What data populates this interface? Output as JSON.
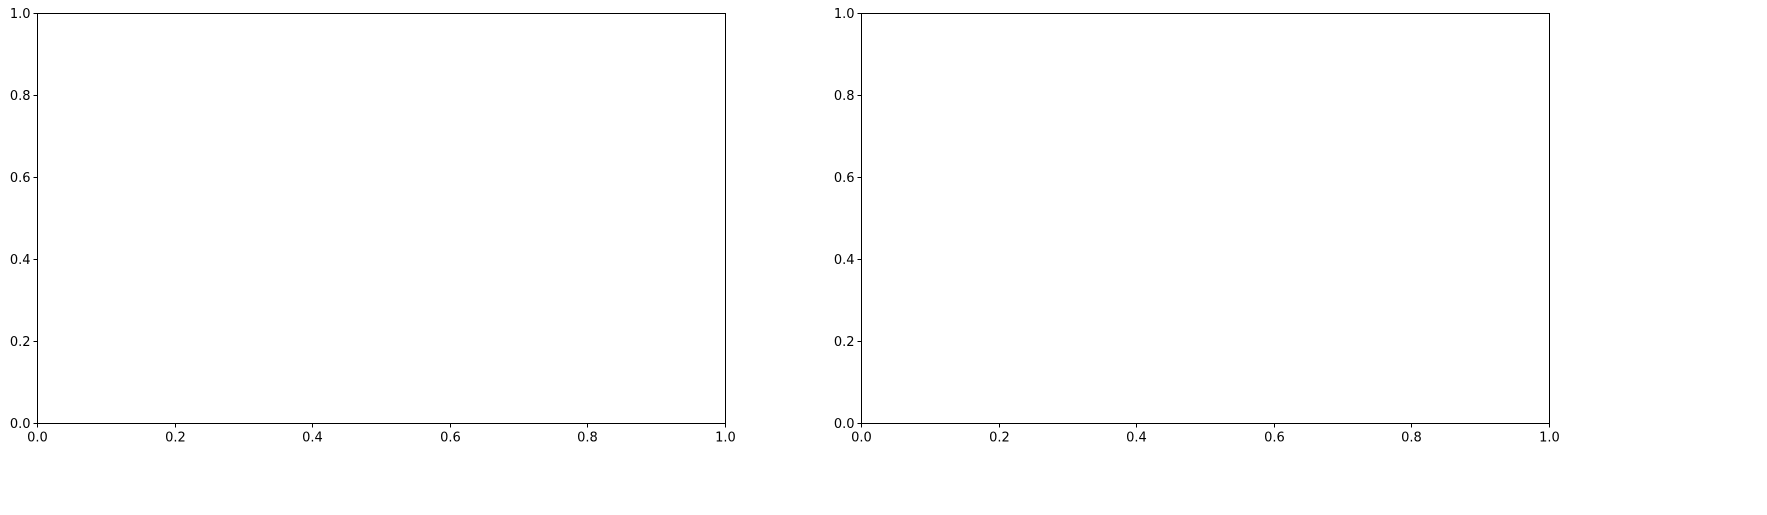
{
  "chart_data": [
    {
      "type": "scatter",
      "title": "",
      "xlabel": "",
      "ylabel": "",
      "series": [],
      "xlim": [
        0.0,
        1.0
      ],
      "ylim": [
        0.0,
        1.0
      ],
      "x_ticks": [
        0.0,
        0.2,
        0.4,
        0.6,
        0.8,
        1.0
      ],
      "y_ticks": [
        0.0,
        0.2,
        0.4,
        0.6,
        0.8,
        1.0
      ],
      "x_tick_labels": [
        "0.0",
        "0.2",
        "0.4",
        "0.6",
        "0.8",
        "1.0"
      ],
      "y_tick_labels": [
        "0.0",
        "0.2",
        "0.4",
        "0.6",
        "0.8",
        "1.0"
      ],
      "grid": false
    },
    {
      "type": "scatter",
      "title": "",
      "xlabel": "",
      "ylabel": "",
      "series": [],
      "xlim": [
        0.0,
        1.0
      ],
      "ylim": [
        0.0,
        1.0
      ],
      "x_ticks": [
        0.0,
        0.2,
        0.4,
        0.6,
        0.8,
        1.0
      ],
      "y_ticks": [
        0.0,
        0.2,
        0.4,
        0.6,
        0.8,
        1.0
      ],
      "x_tick_labels": [
        "0.0",
        "0.2",
        "0.4",
        "0.6",
        "0.8",
        "1.0"
      ],
      "y_tick_labels": [
        "0.0",
        "0.2",
        "0.4",
        "0.6",
        "0.8",
        "1.0"
      ],
      "grid": false
    }
  ]
}
